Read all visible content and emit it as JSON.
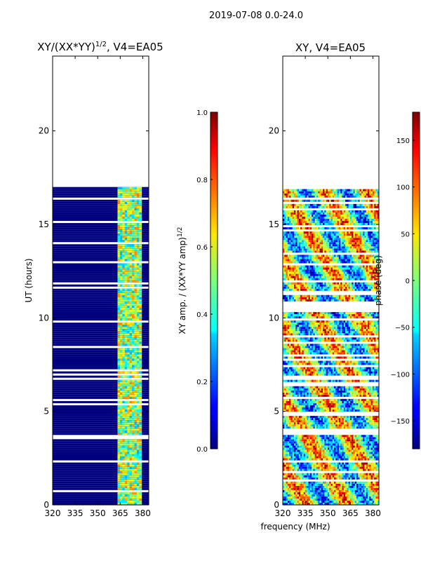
{
  "figure_title": "2019-07-08 0.0-24.0",
  "x_axis_label": "frequency (MHz)",
  "chart_data": [
    {
      "type": "heatmap",
      "title": "XY/(XX*YY)",
      "title_superscript": "1/2",
      "title_suffix": ", V4=EA05",
      "xlabel": "",
      "ylabel": "UT (hours)",
      "xlim": [
        320,
        384
      ],
      "ylim": [
        0,
        24
      ],
      "x_ticks": [
        320,
        335,
        350,
        365,
        380
      ],
      "y_ticks": [
        0,
        5,
        10,
        15,
        20
      ],
      "data_extent_hours": [
        0,
        17
      ],
      "colorbar": {
        "label": "XY amp. / (XX*YY amp)",
        "label_superscript": "1/2",
        "range": [
          0.0,
          1.0
        ],
        "ticks": [
          "0.0",
          "0.2",
          "0.4",
          "0.6",
          "0.8",
          "1.0"
        ]
      }
    },
    {
      "type": "heatmap",
      "title": "XY, V4=EA05",
      "xlabel": "frequency (MHz)",
      "ylabel": "",
      "xlim": [
        320,
        384
      ],
      "ylim": [
        0,
        24
      ],
      "x_ticks": [
        320,
        335,
        350,
        365,
        380
      ],
      "y_ticks": [
        0,
        5,
        10,
        15,
        20
      ],
      "data_extent_hours": [
        0,
        17
      ],
      "colorbar": {
        "label": "phase (deg)",
        "range": [
          -180,
          180
        ],
        "ticks": [
          "−150",
          "−100",
          "−50",
          "0",
          "50",
          "100",
          "150"
        ]
      }
    }
  ]
}
